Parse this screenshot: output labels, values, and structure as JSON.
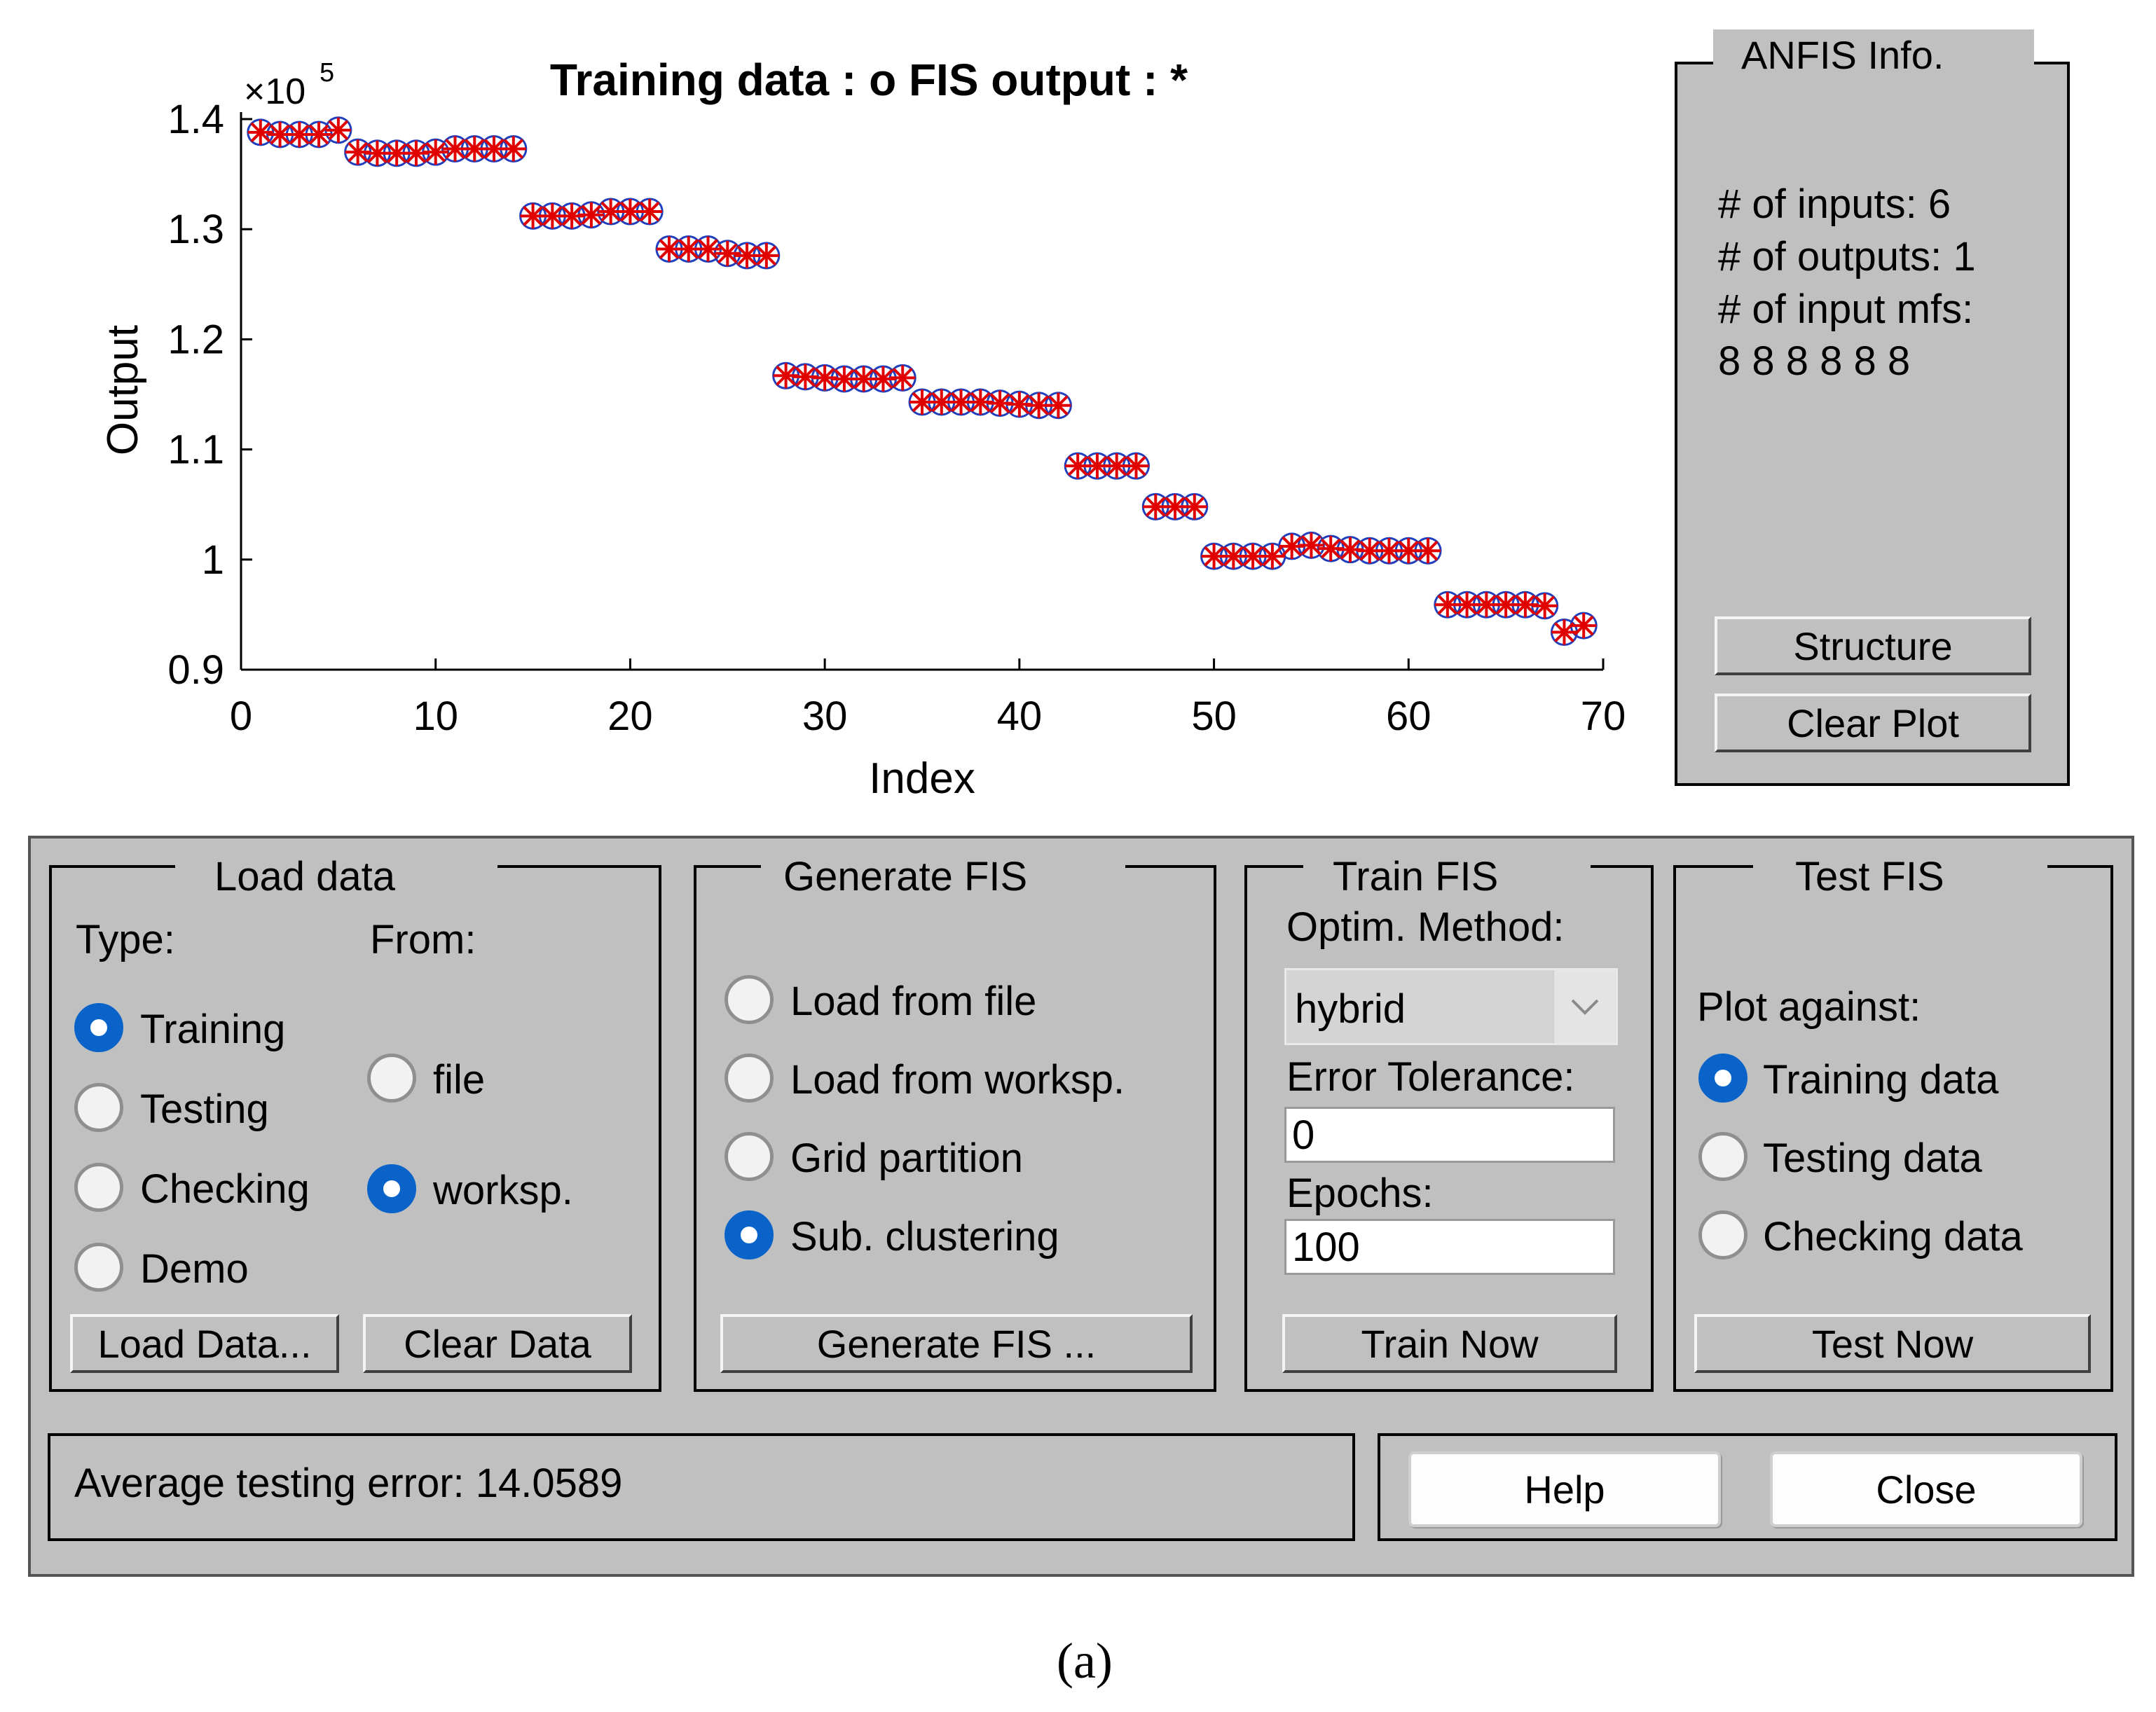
{
  "chart_data": {
    "type": "scatter",
    "title": "Training data : o   FIS output : *",
    "xlabel": "Index",
    "ylabel": "Output",
    "y_multiplier": "×10^5",
    "y_multiplier_base": "×10",
    "y_multiplier_exp": "5",
    "xlim": [
      0,
      70
    ],
    "ylim": [
      0.9,
      1.4
    ],
    "xticks": [
      "0",
      "10",
      "20",
      "30",
      "40",
      "50",
      "60",
      "70"
    ],
    "yticks": [
      "0.9",
      "1",
      "1.1",
      "1.2",
      "1.3",
      "1.4"
    ],
    "grid": false,
    "series": [
      {
        "marker": "o",
        "color": "#1f3fbf",
        "x": [
          1,
          2,
          3,
          4,
          5,
          6,
          7,
          8,
          9,
          10,
          11,
          12,
          13,
          14,
          15,
          16,
          17,
          18,
          19,
          20,
          21,
          22,
          23,
          24,
          25,
          26,
          27,
          28,
          29,
          30,
          31,
          32,
          33,
          34,
          35,
          36,
          37,
          38,
          39,
          40,
          41,
          42,
          43,
          44,
          45,
          46,
          47,
          48,
          49,
          50,
          51,
          52,
          53,
          54,
          55,
          56,
          57,
          58,
          59,
          60,
          61,
          62,
          63,
          64,
          65,
          66,
          67,
          68,
          69
        ],
        "y": [
          1.388,
          1.386,
          1.386,
          1.386,
          1.39,
          1.37,
          1.369,
          1.369,
          1.369,
          1.37,
          1.373,
          1.373,
          1.373,
          1.373,
          1.312,
          1.312,
          1.312,
          1.313,
          1.316,
          1.316,
          1.316,
          1.282,
          1.282,
          1.282,
          1.278,
          1.276,
          1.276,
          1.167,
          1.166,
          1.165,
          1.164,
          1.164,
          1.164,
          1.165,
          1.143,
          1.143,
          1.143,
          1.143,
          1.142,
          1.141,
          1.14,
          1.14,
          1.085,
          1.085,
          1.085,
          1.085,
          1.048,
          1.048,
          1.048,
          1.003,
          1.003,
          1.003,
          1.003,
          1.012,
          1.013,
          1.01,
          1.009,
          1.008,
          1.008,
          1.008,
          1.008,
          0.959,
          0.959,
          0.959,
          0.959,
          0.959,
          0.958,
          0.934,
          0.94
        ]
      },
      {
        "marker": "*",
        "color": "#e00000",
        "x": [
          1,
          2,
          3,
          4,
          5,
          6,
          7,
          8,
          9,
          10,
          11,
          12,
          13,
          14,
          15,
          16,
          17,
          18,
          19,
          20,
          21,
          22,
          23,
          24,
          25,
          26,
          27,
          28,
          29,
          30,
          31,
          32,
          33,
          34,
          35,
          36,
          37,
          38,
          39,
          40,
          41,
          42,
          43,
          44,
          45,
          46,
          47,
          48,
          49,
          50,
          51,
          52,
          53,
          54,
          55,
          56,
          57,
          58,
          59,
          60,
          61,
          62,
          63,
          64,
          65,
          66,
          67,
          68,
          69
        ],
        "y": [
          1.388,
          1.386,
          1.386,
          1.386,
          1.39,
          1.37,
          1.369,
          1.369,
          1.369,
          1.37,
          1.373,
          1.373,
          1.373,
          1.373,
          1.312,
          1.312,
          1.312,
          1.313,
          1.316,
          1.316,
          1.316,
          1.282,
          1.282,
          1.282,
          1.278,
          1.276,
          1.276,
          1.167,
          1.166,
          1.165,
          1.164,
          1.164,
          1.164,
          1.165,
          1.143,
          1.143,
          1.143,
          1.143,
          1.142,
          1.141,
          1.14,
          1.14,
          1.085,
          1.085,
          1.085,
          1.085,
          1.048,
          1.048,
          1.048,
          1.003,
          1.003,
          1.003,
          1.003,
          1.012,
          1.013,
          1.01,
          1.009,
          1.008,
          1.008,
          1.008,
          1.008,
          0.959,
          0.959,
          0.959,
          0.959,
          0.959,
          0.958,
          0.934,
          0.94
        ]
      }
    ]
  },
  "info": {
    "title": "ANFIS Info.",
    "inputs": "# of inputs: 6",
    "outputs": "# of outputs: 1",
    "mfs": "# of input mfs:",
    "mfs_values": "8  8  8  8  8  8",
    "structure_button": "Structure",
    "clear_plot_button": "Clear Plot"
  },
  "load_data": {
    "title": "Load data",
    "type_label": "Type:",
    "from_label": "From:",
    "type_options": [
      "Training",
      "Testing",
      "Checking",
      "Demo"
    ],
    "type_selected": "Training",
    "from_options": [
      "file",
      "worksp."
    ],
    "from_selected": "worksp.",
    "load_button": "Load Data...",
    "clear_button": "Clear Data"
  },
  "generate_fis": {
    "title": "Generate FIS",
    "options": [
      "Load from file",
      "Load from worksp.",
      "Grid partition",
      "Sub. clustering"
    ],
    "selected": "Sub. clustering",
    "button": "Generate FIS ..."
  },
  "train_fis": {
    "title": "Train FIS",
    "method_label": "Optim. Method:",
    "method_value": "hybrid",
    "tolerance_label": "Error Tolerance:",
    "tolerance_value": "0",
    "epochs_label": "Epochs:",
    "epochs_value": "100",
    "button": "Train Now"
  },
  "test_fis": {
    "title": "Test FIS",
    "plot_label": "Plot against:",
    "options": [
      "Training data",
      "Testing data",
      "Checking data"
    ],
    "selected": "Training data",
    "button": "Test Now"
  },
  "status": {
    "text": "Average testing error: 14.0589"
  },
  "footer": {
    "help_button": "Help",
    "close_button": "Close"
  },
  "caption": "(a)"
}
